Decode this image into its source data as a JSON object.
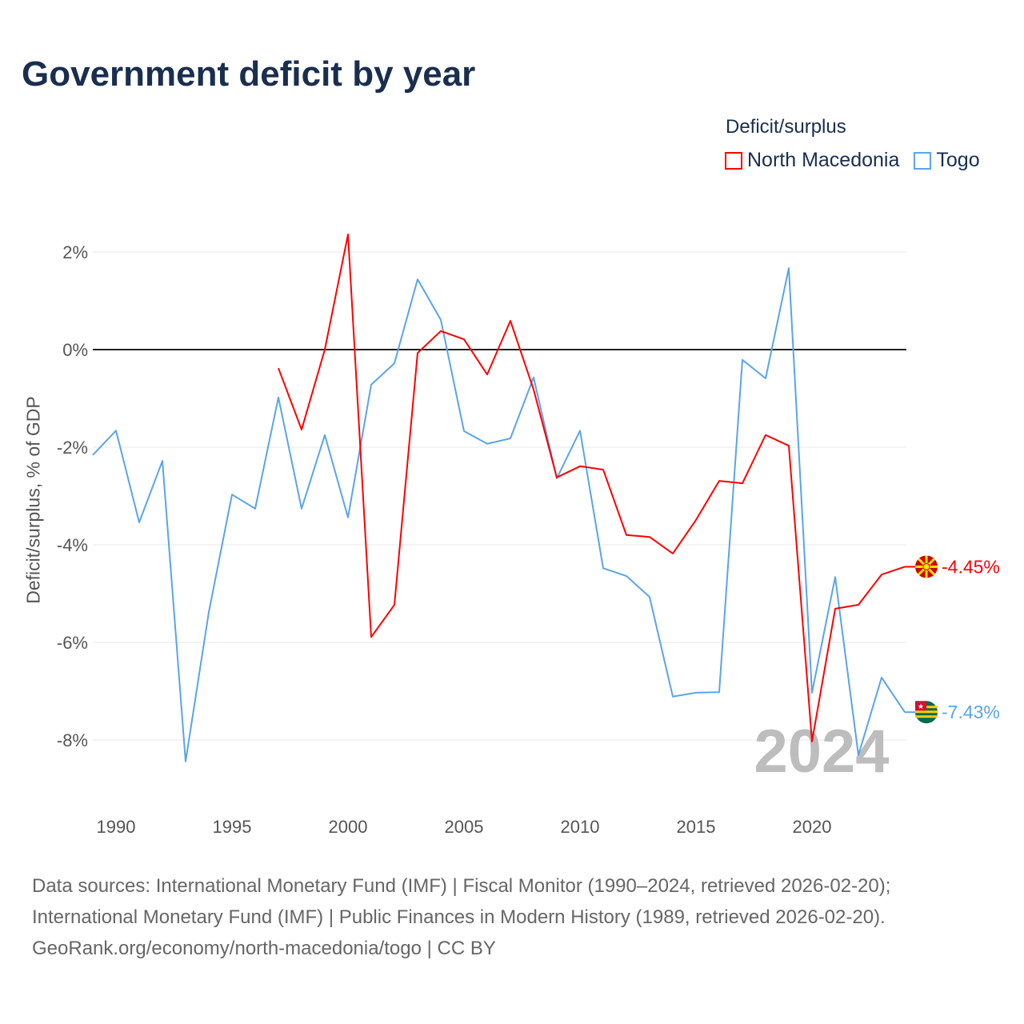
{
  "title": "Government deficit by year",
  "legend": {
    "title": "Deficit/surplus",
    "items": [
      {
        "label": "North Macedonia",
        "color": "#ff0000"
      },
      {
        "label": "Togo",
        "color": "#5aa5e8"
      }
    ]
  },
  "footer": [
    "Data sources: International Monetary Fund (IMF) | Fiscal Monitor (1990–2024, retrieved 2026-02-20);",
    "International Monetary Fund (IMF) | Public Finances in Modern History (1989, retrieved 2026-02-20).",
    "GeoRank.org/economy/north-macedonia/togo | CC BY"
  ],
  "chart_data": {
    "type": "line",
    "title": "Government deficit by year",
    "xlabel": "",
    "ylabel": "Deficit/surplus, % of GDP",
    "xlim": [
      1989,
      2024
    ],
    "ylim": [
      -9.2,
      3.3
    ],
    "xticks": [
      1990,
      1995,
      2000,
      2005,
      2010,
      2015,
      2020
    ],
    "yticks": [
      2,
      0,
      -2,
      -4,
      -6,
      -8
    ],
    "ytick_labels": [
      "2%",
      "0%",
      "-2%",
      "-4%",
      "-6%",
      "-8%"
    ],
    "year_label": "2024",
    "series": [
      {
        "name": "North Macedonia",
        "color": "#ff0000",
        "end_label": "-4.45%",
        "x": [
          1997,
          1998,
          1999,
          2000,
          2001,
          2002,
          2003,
          2004,
          2005,
          2006,
          2007,
          2008,
          2009,
          2010,
          2011,
          2012,
          2013,
          2014,
          2015,
          2016,
          2017,
          2018,
          2019,
          2020,
          2021,
          2022,
          2023,
          2024
        ],
        "values": [
          -0.38,
          -1.64,
          0.0,
          2.36,
          -5.89,
          -5.23,
          -0.07,
          0.38,
          0.21,
          -0.51,
          0.59,
          -0.82,
          -2.62,
          -2.39,
          -2.46,
          -3.8,
          -3.84,
          -4.18,
          -3.49,
          -2.69,
          -2.74,
          -1.75,
          -1.97,
          -8.03,
          -5.31,
          -5.23,
          -4.61,
          -4.45
        ]
      },
      {
        "name": "Togo",
        "color": "#5aa5e8",
        "end_label": "-7.43%",
        "x": [
          1989,
          1990,
          1991,
          1992,
          1993,
          1994,
          1995,
          1996,
          1997,
          1998,
          1999,
          2000,
          2001,
          2002,
          2003,
          2004,
          2005,
          2006,
          2007,
          2008,
          2009,
          2010,
          2011,
          2012,
          2013,
          2014,
          2015,
          2016,
          2017,
          2018,
          2019,
          2020,
          2021,
          2022,
          2023,
          2024
        ],
        "values": [
          -2.16,
          -1.66,
          -3.54,
          -2.28,
          -8.44,
          -5.38,
          -2.97,
          -3.26,
          -0.98,
          -3.26,
          -1.75,
          -3.44,
          -0.72,
          -0.28,
          1.44,
          0.61,
          -1.67,
          -1.93,
          -1.82,
          -0.57,
          -2.64,
          -1.66,
          -4.48,
          -4.64,
          -5.07,
          -7.11,
          -7.03,
          -7.02,
          -0.21,
          -0.59,
          1.67,
          -7.03,
          -4.66,
          -8.31,
          -6.72,
          -7.43
        ]
      }
    ]
  }
}
